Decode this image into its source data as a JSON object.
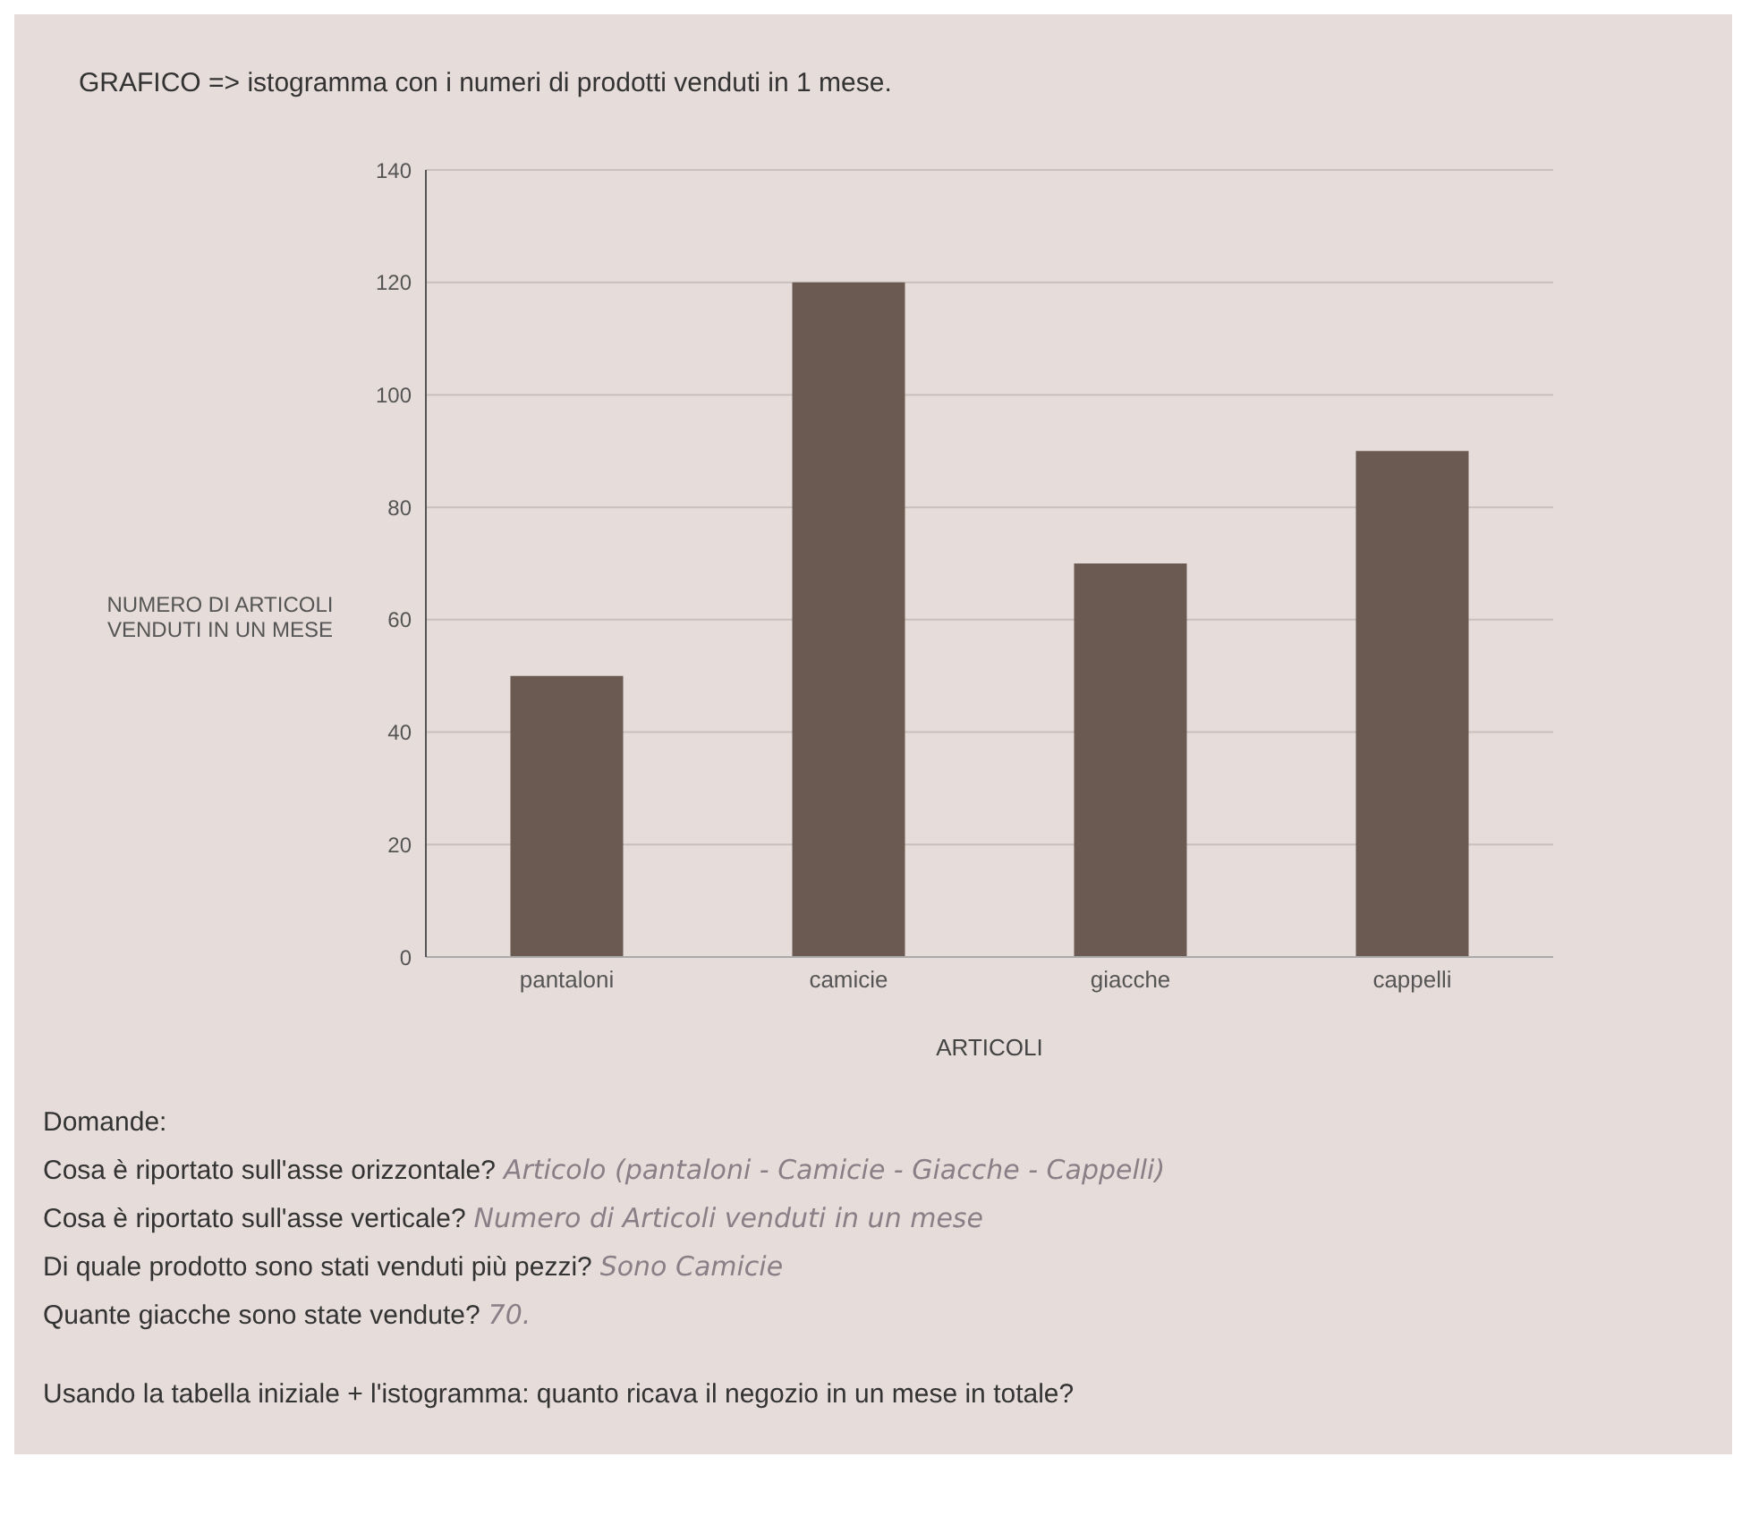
{
  "chart_data": {
    "type": "bar",
    "title": "GRAFICO => istogramma con i numeri di prodotti venduti in 1 mese.",
    "categories": [
      "pantaloni",
      "camicie",
      "giacche",
      "cappelli"
    ],
    "values": [
      50,
      120,
      70,
      90
    ],
    "color": "#6b5a52",
    "xlabel": "ARTICOLI",
    "ylabel": "NUMERO DI ARTICOLI VENDUTI IN UN MESE",
    "ylim": [
      0,
      140
    ],
    "yticks": [
      0,
      20,
      40,
      60,
      80,
      100,
      120,
      140
    ],
    "grid": "y",
    "annotations": [
      "Domande:",
      "Cosa è riportato sull'asse orizzontale?",
      "Articolo (pantaloni - Camicie - Giacche - Cappelli)",
      "Cosa è riportato sull'asse verticale?",
      "Numero di Articoli venduti in un mese",
      "Di quale prodotto sono stati venduti più pezzi?",
      "Sono Camicie",
      "Quante giacche sono state vendute?",
      "70.",
      "Usando la tabella iniziale + l'istogramma: quanto ricava il negozio in un mese in totale?"
    ]
  }
}
